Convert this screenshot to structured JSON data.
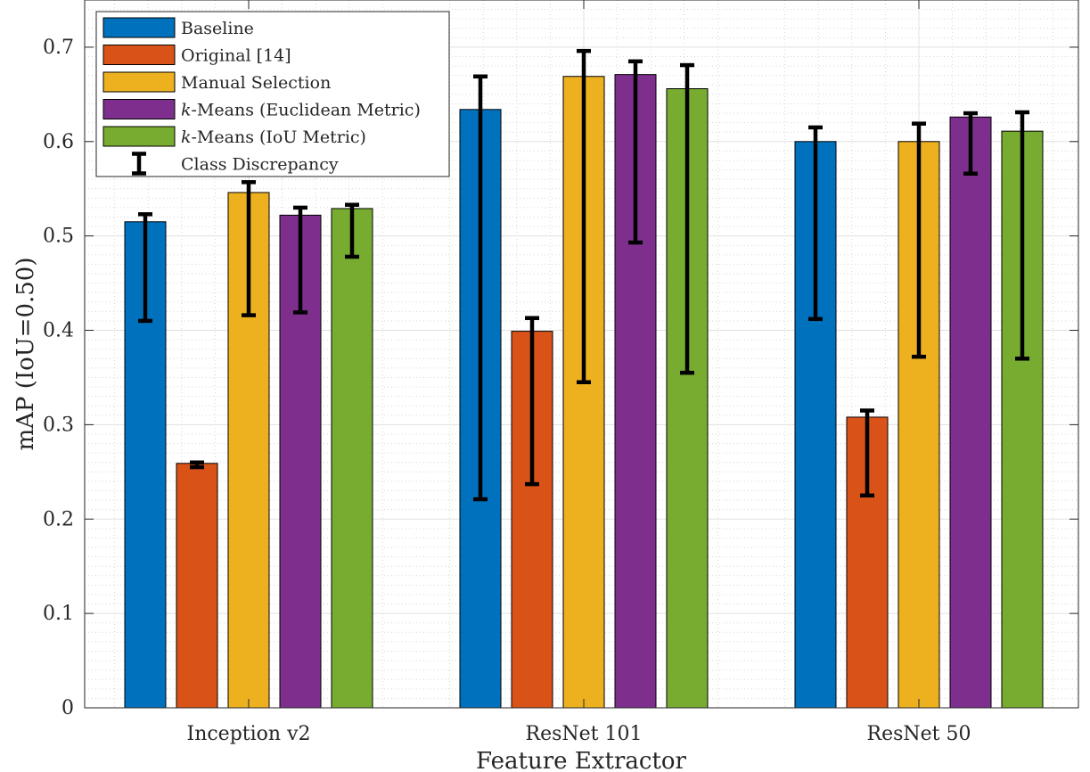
{
  "chart_data": {
    "type": "bar",
    "xlabel": "Feature Extractor",
    "ylabel": "mAP (IoU=0.50)",
    "ylim": [
      0,
      0.75
    ],
    "yticks": [
      0,
      0.1,
      0.2,
      0.3,
      0.4,
      0.5,
      0.6,
      0.7
    ],
    "ytick_labels": [
      "0",
      "0.1",
      "0.2",
      "0.3",
      "0.4",
      "0.5",
      "0.6",
      "0.7"
    ],
    "grid": true,
    "minor_grid": true,
    "legend_position": "top-left",
    "categories": [
      "Inception v2",
      "ResNet 101",
      "ResNet 50"
    ],
    "series": [
      {
        "name": "Baseline",
        "color": "#0072BD",
        "values": [
          0.515,
          0.634,
          0.6
        ],
        "error_low": [
          0.41,
          0.221,
          0.412
        ],
        "error_high": [
          0.523,
          0.669,
          0.615
        ]
      },
      {
        "name": "Original [14]",
        "color": "#D95319",
        "values": [
          0.259,
          0.399,
          0.308
        ],
        "error_low": [
          0.255,
          0.237,
          0.225
        ],
        "error_high": [
          0.26,
          0.413,
          0.315
        ]
      },
      {
        "name": "Manual Selection",
        "color": "#EDB120",
        "values": [
          0.546,
          0.669,
          0.6
        ],
        "error_low": [
          0.416,
          0.345,
          0.372
        ],
        "error_high": [
          0.557,
          0.696,
          0.619
        ]
      },
      {
        "name_prefix": "k",
        "name_suffix": "-Means (Euclidean Metric)",
        "color": "#7E2F8E",
        "values": [
          0.522,
          0.671,
          0.626
        ],
        "error_low": [
          0.419,
          0.493,
          0.566
        ],
        "error_high": [
          0.53,
          0.685,
          0.63
        ]
      },
      {
        "name_prefix": "k",
        "name_suffix": "-Means (IoU Metric)",
        "color": "#77AC30",
        "values": [
          0.529,
          0.656,
          0.611
        ],
        "error_low": [
          0.478,
          0.355,
          0.37
        ],
        "error_high": [
          0.533,
          0.681,
          0.631
        ]
      }
    ],
    "error_bar_label": "Class Discrepancy"
  }
}
